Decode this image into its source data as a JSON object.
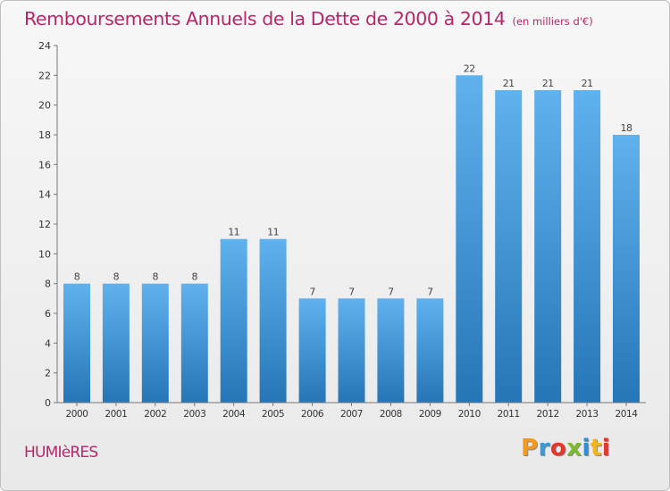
{
  "header": {
    "title": "Remboursements Annuels de la Dette de 2000 à 2014",
    "subtitle": "(en milliers d'€)"
  },
  "footer": {
    "place": "HUMIèRES",
    "logo": "Proxiti"
  },
  "colors": {
    "title": "#b5276a",
    "bar_top": "#5fb2ee",
    "bar_bottom": "#2676b7"
  },
  "chart_data": {
    "type": "bar",
    "title": "Remboursements Annuels de la Dette de 2000 à 2014",
    "subtitle": "(en milliers d'€)",
    "xlabel": "",
    "ylabel": "",
    "categories": [
      "2000",
      "2001",
      "2002",
      "2003",
      "2004",
      "2005",
      "2006",
      "2007",
      "2008",
      "2009",
      "2010",
      "2011",
      "2012",
      "2013",
      "2014"
    ],
    "values": [
      8,
      8,
      8,
      8,
      11,
      11,
      7,
      7,
      7,
      7,
      22,
      21,
      21,
      21,
      18
    ],
    "ylim": [
      0,
      24
    ],
    "yticks": [
      0,
      2,
      4,
      6,
      8,
      10,
      12,
      14,
      16,
      18,
      20,
      22,
      24
    ],
    "grid": false,
    "data_labels": true
  }
}
